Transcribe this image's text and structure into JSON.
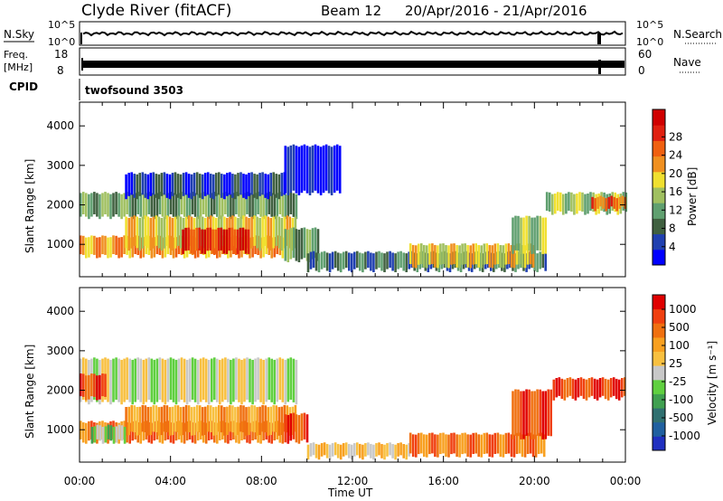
{
  "header": {
    "station": "Clyde River (fitACF)",
    "beam": "Beam 12",
    "date_range": "20/Apr/2016 - 21/Apr/2016"
  },
  "noise_panel": {
    "left_label": "N.Sky",
    "right_label": "N.Search",
    "left_ticks": [
      "10^5",
      "10^0"
    ],
    "right_ticks": [
      "10^5",
      "10^0"
    ]
  },
  "freq_panel": {
    "left_label_1": "Freq.",
    "left_label_2": "[MHz]",
    "right_label": "Nave",
    "left_ticks": [
      "18",
      "8"
    ],
    "right_ticks": [
      "60",
      "0"
    ]
  },
  "cpid_panel": {
    "label": "CPID",
    "value": "twofsound 3503"
  },
  "chart_data": [
    {
      "type": "heatmap",
      "name": "power",
      "title": "",
      "xlabel": "Time UT",
      "ylabel": "Slant Range [km]",
      "x_ticks": [
        "00:00",
        "04:00",
        "08:00",
        "12:00",
        "16:00",
        "20:00",
        "00:00"
      ],
      "xlim_hours": [
        0,
        24
      ],
      "y_ticks": [
        1000,
        2000,
        3000,
        4000
      ],
      "ylim": [
        180,
        4600
      ],
      "colorbar": {
        "label": "Power [dB]",
        "ticks": [
          "4",
          "8",
          "12",
          "16",
          "20",
          "24",
          "28"
        ],
        "colors": [
          "#0000ff",
          "#2040b0",
          "#406040",
          "#60a070",
          "#a0c060",
          "#f0e030",
          "#f09020",
          "#f06010",
          "#e02010",
          "#d00000"
        ]
      },
      "regions": [
        {
          "t0": 0.0,
          "t1": 9.5,
          "r0": 1700,
          "r1": 2300,
          "level": 3
        },
        {
          "t0": 0.0,
          "t1": 9.0,
          "r0": 700,
          "r1": 1200,
          "level": 6
        },
        {
          "t0": 2.0,
          "t1": 9.5,
          "r0": 900,
          "r1": 1700,
          "level": 5
        },
        {
          "t0": 4.5,
          "t1": 7.5,
          "r0": 800,
          "r1": 1400,
          "level": 8
        },
        {
          "t0": 2.0,
          "t1": 9.0,
          "r0": 2200,
          "r1": 2800,
          "level": 1
        },
        {
          "t0": 9.0,
          "t1": 10.5,
          "r0": 600,
          "r1": 1400,
          "level": 3
        },
        {
          "t0": 10.0,
          "t1": 20.5,
          "r0": 350,
          "r1": 800,
          "level": 2
        },
        {
          "t0": 14.5,
          "t1": 20.0,
          "r0": 450,
          "r1": 1000,
          "level": 5
        },
        {
          "t0": 19.0,
          "t1": 20.5,
          "r0": 800,
          "r1": 1700,
          "level": 4
        },
        {
          "t0": 20.5,
          "t1": 24.0,
          "r0": 1800,
          "r1": 2300,
          "level": 4
        },
        {
          "t0": 22.5,
          "t1": 24.0,
          "r0": 1900,
          "r1": 2200,
          "level": 7
        },
        {
          "t0": 9.0,
          "t1": 11.5,
          "r0": 2300,
          "r1": 3500,
          "level": 0
        }
      ]
    },
    {
      "type": "heatmap",
      "name": "velocity",
      "title": "",
      "xlabel": "Time UT",
      "ylabel": "Slant Range [km]",
      "x_ticks": [
        "00:00",
        "04:00",
        "08:00",
        "12:00",
        "16:00",
        "20:00",
        "00:00"
      ],
      "xlim_hours": [
        0,
        24
      ],
      "y_ticks": [
        1000,
        2000,
        3000,
        4000
      ],
      "ylim": [
        180,
        4600
      ],
      "colorbar": {
        "label": "Velocity [m s⁻¹]",
        "ticks": [
          "1000",
          "500",
          "100",
          "25",
          "-25",
          "-100",
          "-500",
          "-1000"
        ],
        "colors": [
          "#2030c0",
          "#2060a0",
          "#307070",
          "#40a050",
          "#60d040",
          "#c8c8c8",
          "#f8c040",
          "#f8a020",
          "#f07010",
          "#f04010",
          "#e00000"
        ]
      },
      "regions": [
        {
          "t0": 0.0,
          "t1": 9.5,
          "r0": 1700,
          "r1": 2800,
          "level": 5
        },
        {
          "t0": 0.0,
          "t1": 1.2,
          "r0": 1800,
          "r1": 2400,
          "level": 9
        },
        {
          "t0": 0.0,
          "t1": 9.0,
          "r0": 700,
          "r1": 1200,
          "level": 8
        },
        {
          "t0": 2.0,
          "t1": 9.5,
          "r0": 900,
          "r1": 1600,
          "level": 7
        },
        {
          "t0": 0.5,
          "t1": 2.0,
          "r0": 700,
          "r1": 1100,
          "level": 4
        },
        {
          "t0": 9.0,
          "t1": 10.0,
          "r0": 700,
          "r1": 1400,
          "level": 9
        },
        {
          "t0": 10.0,
          "t1": 14.5,
          "r0": 300,
          "r1": 650,
          "level": 6
        },
        {
          "t0": 14.5,
          "t1": 20.5,
          "r0": 350,
          "r1": 900,
          "level": 8
        },
        {
          "t0": 19.0,
          "t1": 20.8,
          "r0": 800,
          "r1": 2000,
          "level": 9
        },
        {
          "t0": 20.8,
          "t1": 24.0,
          "r0": 1800,
          "r1": 2300,
          "level": 9
        }
      ]
    }
  ]
}
